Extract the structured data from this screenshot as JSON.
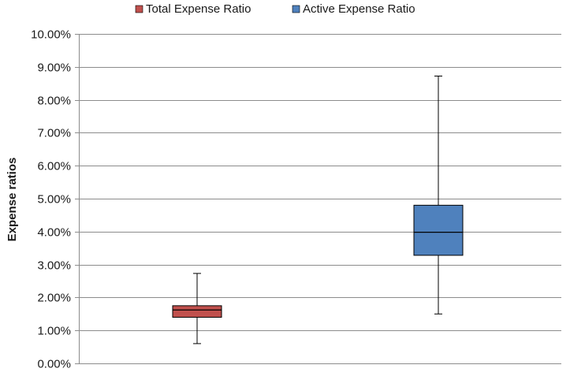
{
  "chart_data": {
    "type": "boxplot",
    "title": "",
    "xlabel": "",
    "ylabel": "Expense ratios",
    "ylim": [
      0,
      10
    ],
    "y_tick_step": 1,
    "y_tick_labels": [
      "0.00%",
      "1.00%",
      "2.00%",
      "3.00%",
      "4.00%",
      "5.00%",
      "6.00%",
      "7.00%",
      "8.00%",
      "9.00%",
      "10.00%"
    ],
    "grid": "horizontal",
    "legend_position": "top",
    "series": [
      {
        "name": "Total Expense Ratio",
        "color": "#C0504D",
        "min": 0.6,
        "q1": 1.4,
        "median": 1.62,
        "q3": 1.75,
        "max": 2.73
      },
      {
        "name": "Active Expense Ratio",
        "color": "#4F81BD",
        "min": 1.5,
        "q1": 3.28,
        "median": 3.98,
        "q3": 4.8,
        "max": 8.72
      }
    ]
  }
}
